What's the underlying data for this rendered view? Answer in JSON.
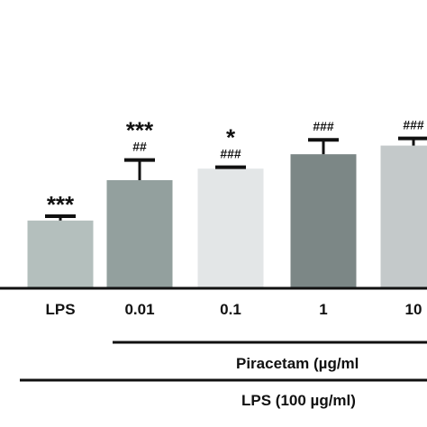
{
  "chart_data": {
    "type": "bar",
    "categories": [
      "LPS",
      "0.01",
      "0.1",
      "1",
      "10"
    ],
    "values": [
      47,
      75,
      83,
      93,
      99
    ],
    "errors": [
      3,
      14,
      1,
      10,
      5
    ],
    "colors": [
      "#b4bfbd",
      "#93a09e",
      "#e3e6e7",
      "#7c8786",
      "#c4c9ca"
    ],
    "significance_star": [
      "***",
      "***",
      "*",
      "",
      ""
    ],
    "significance_hash": [
      "",
      "##",
      "###",
      "###",
      "###"
    ],
    "ylim": [
      0,
      130
    ],
    "grid": false,
    "group_labels": {
      "piracetam": "Piracetam (µg/ml",
      "lps": "LPS (100 µg/ml)"
    }
  }
}
